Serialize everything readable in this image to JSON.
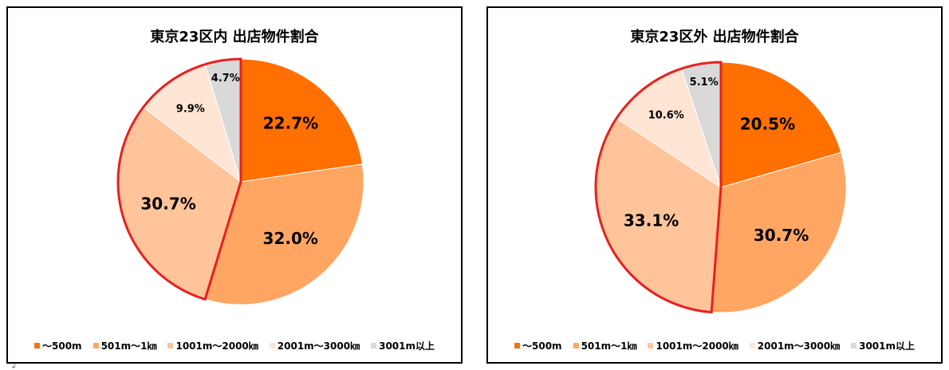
{
  "chart_data": [
    {
      "type": "pie",
      "title": "東京23区内 出店物件割合",
      "categories": [
        "〜500m",
        "501m〜1㎞",
        "1001m〜2000㎞",
        "2001m〜3000㎞",
        "3001m以上"
      ],
      "values": [
        22.7,
        32.0,
        30.7,
        9.9,
        4.7
      ],
      "labels": [
        "22.7%",
        "32.0%",
        "30.7%",
        "9.9%",
        "4.7%"
      ],
      "colors": [
        "#FF7000",
        "#FFA662",
        "#FFC49A",
        "#FFE5D4",
        "#D9D9D9"
      ],
      "highlight": {
        "slices": [
          2,
          3,
          4
        ],
        "color": "#E8201E"
      },
      "legend_position": "bottom"
    },
    {
      "type": "pie",
      "title": "東京23区外 出店物件割合",
      "categories": [
        "〜500m",
        "501m〜1㎞",
        "1001m〜2000㎞",
        "2001m〜3000㎞",
        "3001m以上"
      ],
      "values": [
        20.5,
        30.7,
        33.1,
        10.6,
        5.1
      ],
      "labels": [
        "20.5%",
        "30.7%",
        "33.1%",
        "10.6%",
        "5.1%"
      ],
      "colors": [
        "#FF7000",
        "#FFA662",
        "#FFC49A",
        "#FFE5D4",
        "#D9D9D9"
      ],
      "highlight": {
        "slices": [
          2,
          3,
          4
        ],
        "color": "#E8201E"
      },
      "legend_position": "bottom"
    }
  ],
  "corner_mark": "↲"
}
